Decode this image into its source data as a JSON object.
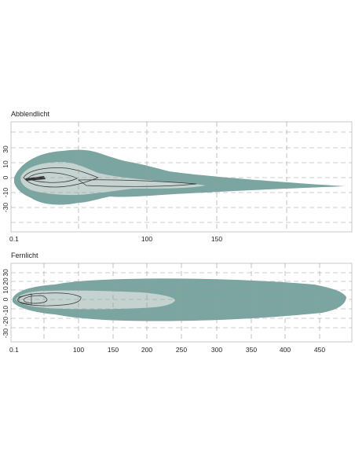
{
  "panels": [
    {
      "title": "Abblendlicht",
      "y_ticks": [
        "30",
        "10",
        "0",
        "-10",
        "-30"
      ],
      "x_ticks": [
        "0.1",
        "100",
        "150"
      ]
    },
    {
      "title": "Fernlicht",
      "y_ticks": [
        "30",
        "20",
        "10",
        "0",
        "-10",
        "-20",
        "-30"
      ],
      "x_ticks": [
        "0.1",
        "100",
        "150",
        "200",
        "250",
        "300",
        "350",
        "400",
        "450"
      ]
    }
  ],
  "colors": {
    "outer_zone": "#7aa5a0",
    "inner_zone": "#c4d2d0",
    "grid": "#999999"
  }
}
